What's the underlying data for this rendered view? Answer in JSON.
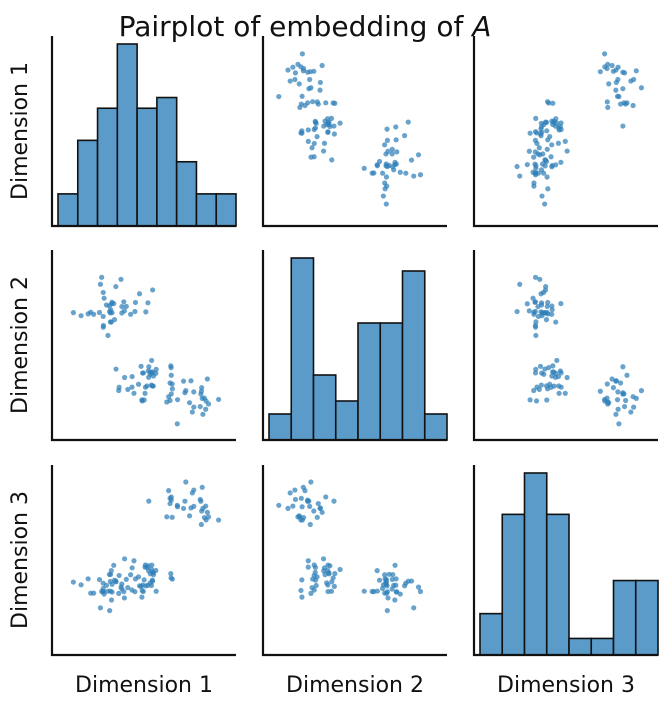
{
  "chart_data": {
    "type": "pairplot",
    "title": "Pairplot of embedding of ",
    "title_emphasis": "A",
    "variables": [
      "Dimension 1",
      "Dimension 2",
      "Dimension 3"
    ],
    "color": "#2f7fb8",
    "bar_color": "#5b9bca",
    "ranges": [
      [
        -0.7,
        1.0
      ],
      [
        -0.7,
        0.75
      ],
      [
        -0.6,
        0.85
      ]
    ],
    "histograms": [
      {
        "variable": "Dimension 1",
        "counts": [
          3,
          8,
          11,
          17,
          11,
          12,
          6,
          3,
          3
        ]
      },
      {
        "variable": "Dimension 2",
        "counts": [
          2,
          14,
          5,
          3,
          9,
          9,
          13,
          2
        ]
      },
      {
        "variable": "Dimension 3",
        "counts": [
          5,
          17,
          22,
          17,
          2,
          2,
          9,
          9
        ]
      }
    ],
    "clusters": [
      {
        "count": 30,
        "d1_mean": 0.55,
        "d1_sd": 0.17,
        "d2_mean": -0.38,
        "d2_sd": 0.1,
        "d3_mean": 0.58,
        "d3_sd": 0.09
      },
      {
        "count": 40,
        "d1_mean": -0.12,
        "d1_sd": 0.15,
        "d2_mean": 0.33,
        "d2_sd": 0.12,
        "d3_mean": -0.08,
        "d3_sd": 0.07
      },
      {
        "count": 34,
        "d1_mean": 0.18,
        "d1_sd": 0.15,
        "d2_mean": -0.28,
        "d2_sd": 0.1,
        "d3_mean": -0.02,
        "d3_sd": 0.08
      }
    ]
  }
}
